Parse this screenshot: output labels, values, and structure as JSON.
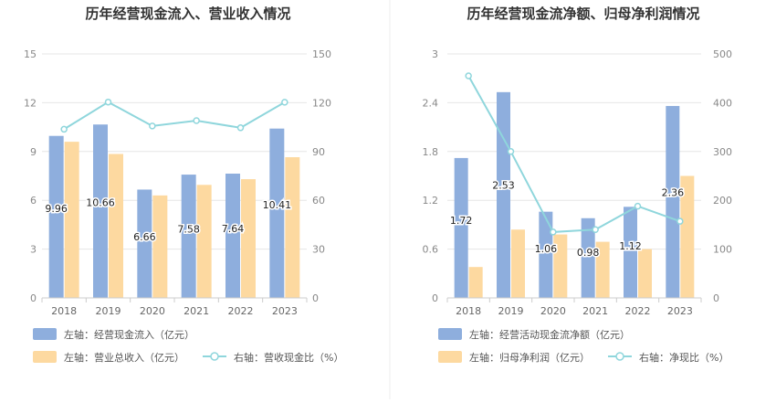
{
  "colors": {
    "bar_primary": "#8eaedd",
    "bar_secondary": "#fdd9a0",
    "line": "#8fd6dc",
    "grid": "#e6e6e6",
    "axis": "#cccccc",
    "divider": "#eeeeee"
  },
  "chart_data": [
    {
      "type": "bar",
      "title": "历年经营现金流入、营业收入情况",
      "categories": [
        "2018",
        "2019",
        "2020",
        "2021",
        "2022",
        "2023"
      ],
      "y_left": {
        "ticks": [
          0,
          3,
          6,
          9,
          12,
          15
        ],
        "ylim": [
          0,
          15
        ]
      },
      "y_right": {
        "ticks": [
          0,
          30,
          60,
          90,
          120,
          150
        ],
        "ylim": [
          0,
          150
        ]
      },
      "series": [
        {
          "name": "左轴：经营现金流入（亿元）",
          "kind": "bar",
          "axis": "left",
          "color": "#8eaedd",
          "values": [
            9.96,
            10.66,
            6.66,
            7.58,
            7.64,
            10.41
          ],
          "labels": [
            "9.96",
            "10.66",
            "6.66",
            "7.58",
            "7.64",
            "10.41"
          ]
        },
        {
          "name": "左轴：营业总收入（亿元）",
          "kind": "bar",
          "axis": "left",
          "color": "#fdd9a0",
          "values": [
            9.6,
            8.85,
            6.3,
            6.95,
            7.3,
            8.65
          ]
        },
        {
          "name": "右轴：营收现金比（%）",
          "kind": "line",
          "axis": "right",
          "color": "#8fd6dc",
          "values": [
            103.7,
            120.4,
            105.7,
            109.0,
            104.6,
            120.3
          ]
        }
      ]
    },
    {
      "type": "bar",
      "title": "历年经营现金流净额、归母净利润情况",
      "categories": [
        "2018",
        "2019",
        "2020",
        "2021",
        "2022",
        "2023"
      ],
      "y_left": {
        "ticks": [
          0,
          0.6,
          1.2,
          1.8,
          2.4,
          3
        ],
        "labels": [
          "0",
          "0.6",
          "1.2",
          "1.8",
          "2.4",
          "3"
        ],
        "ylim": [
          0,
          3
        ]
      },
      "y_right": {
        "ticks": [
          0,
          100,
          200,
          300,
          400,
          500
        ],
        "ylim": [
          0,
          500
        ]
      },
      "series": [
        {
          "name": "左轴：经营活动现金流净额（亿元）",
          "kind": "bar",
          "axis": "left",
          "color": "#8eaedd",
          "values": [
            1.72,
            2.53,
            1.06,
            0.98,
            1.12,
            2.36
          ],
          "labels": [
            "1.72",
            "2.53",
            "1.06",
            "0.98",
            "1.12",
            "2.36"
          ]
        },
        {
          "name": "左轴：归母净利润（亿元）",
          "kind": "bar",
          "axis": "left",
          "color": "#fdd9a0",
          "values": [
            0.38,
            0.84,
            0.78,
            0.69,
            0.6,
            1.5
          ]
        },
        {
          "name": "右轴：净现比（%）",
          "kind": "line",
          "axis": "right",
          "color": "#8fd6dc",
          "values": [
            455,
            300,
            135,
            140,
            188,
            157
          ]
        }
      ]
    }
  ]
}
